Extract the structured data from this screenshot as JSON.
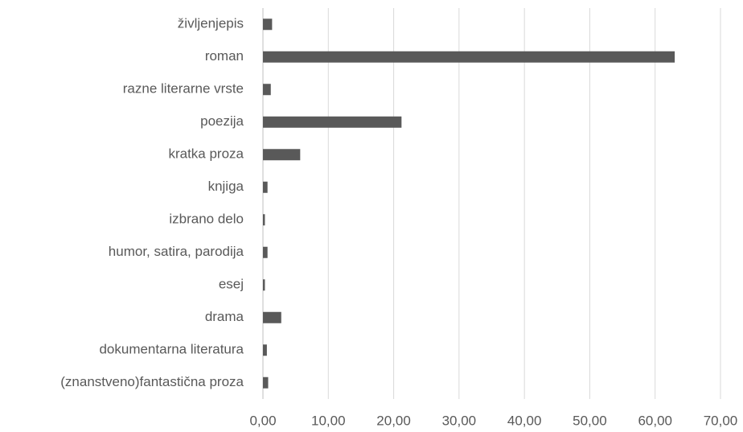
{
  "chart_data": {
    "type": "barh",
    "categories": [
      "življenjepis",
      "roman",
      "razne literarne vrste",
      "poezija",
      "kratka proza",
      "knjiga",
      "izbrano delo",
      "humor, satira, parodija",
      "esej",
      "drama",
      "dokumentarna literatura",
      "(znanstveno)fantastična proza"
    ],
    "values": [
      1.4,
      63.0,
      1.2,
      21.2,
      5.7,
      0.7,
      0.3,
      0.7,
      0.3,
      2.8,
      0.6,
      0.8
    ],
    "color": "#595959",
    "xlim": [
      0,
      70
    ],
    "xticks": [
      {
        "value": 0,
        "label": "0,00"
      },
      {
        "value": 10,
        "label": "10,00"
      },
      {
        "value": 20,
        "label": "20,00"
      },
      {
        "value": 30,
        "label": "30,00"
      },
      {
        "value": 40,
        "label": "40,00"
      },
      {
        "value": 50,
        "label": "50,00"
      },
      {
        "value": 60,
        "label": "60,00"
      },
      {
        "value": 70,
        "label": "70,00"
      }
    ],
    "grid": true
  }
}
